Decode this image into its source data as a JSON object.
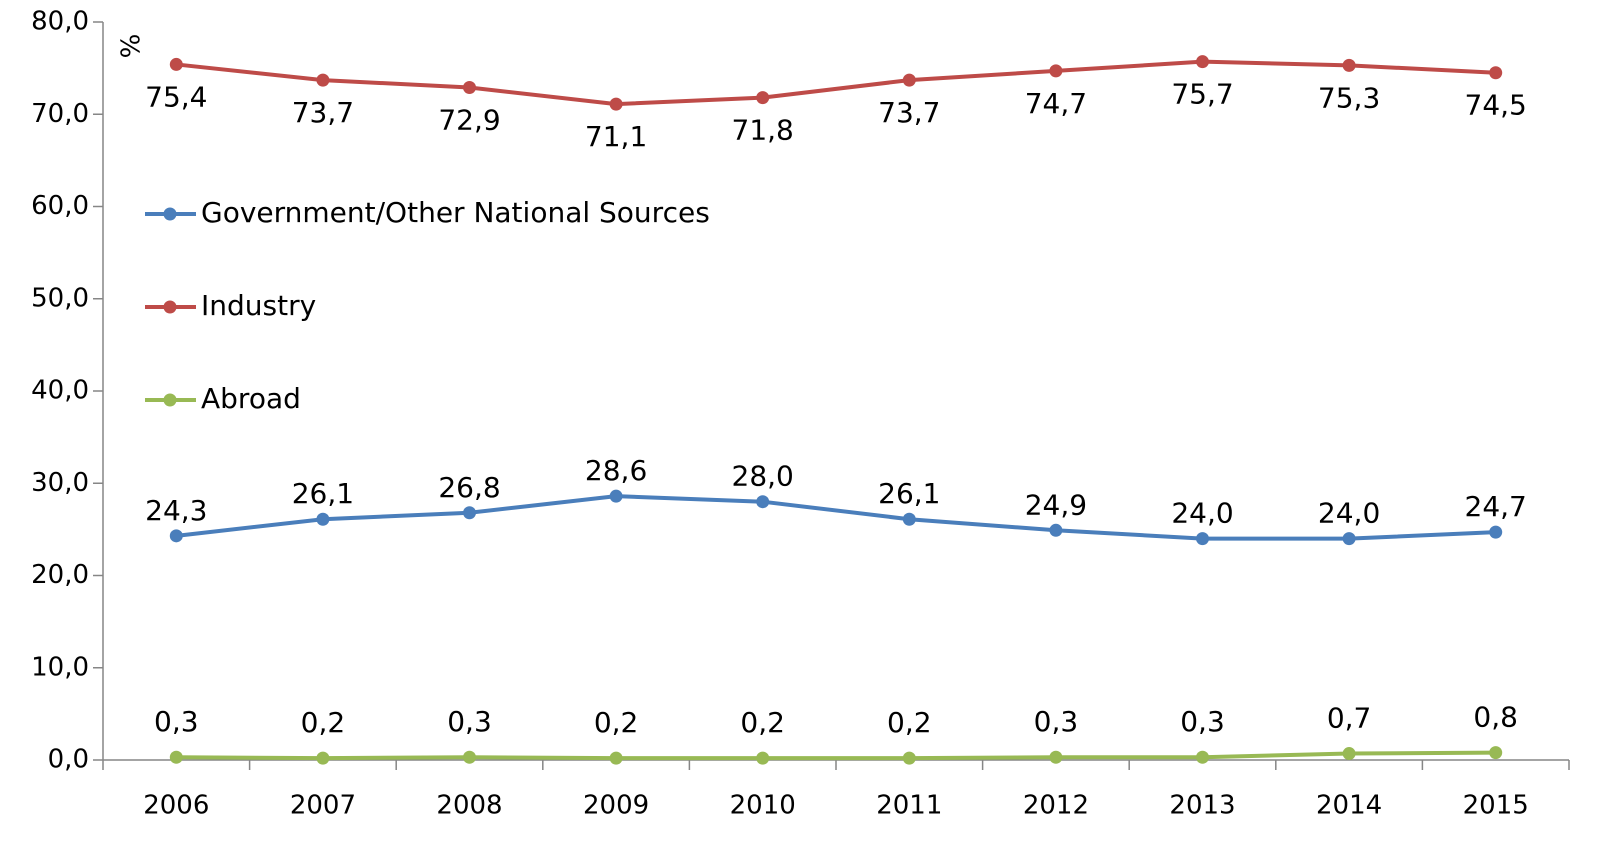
{
  "chart_data": {
    "type": "line",
    "y_label": "%",
    "categories": [
      "2006",
      "2007",
      "2008",
      "2009",
      "2010",
      "2011",
      "2012",
      "2013",
      "2014",
      "2015"
    ],
    "series": [
      {
        "name": "Government/Other National Sources",
        "color": "#4a7ebb",
        "values": [
          24.3,
          26.1,
          26.8,
          28.6,
          28.0,
          26.1,
          24.9,
          24.0,
          24.0,
          24.7
        ],
        "value_labels": [
          "24,3",
          "26,1",
          "26,8",
          "28,6",
          "28,0",
          "26,1",
          "24,9",
          "24,0",
          "24,0",
          "24,7"
        ]
      },
      {
        "name": "Industry",
        "color": "#be4b48",
        "values": [
          75.4,
          73.7,
          72.9,
          71.1,
          71.8,
          73.7,
          74.7,
          75.7,
          75.3,
          74.5
        ],
        "value_labels": [
          "75,4",
          "73,7",
          "72,9",
          "71,1",
          "71,8",
          "73,7",
          "74,7",
          "75,7",
          "75,3",
          "74,5"
        ]
      },
      {
        "name": "Abroad",
        "color": "#98b954",
        "values": [
          0.3,
          0.2,
          0.3,
          0.2,
          0.2,
          0.2,
          0.3,
          0.3,
          0.7,
          0.8
        ],
        "value_labels": [
          "0,3",
          "0,2",
          "0,3",
          "0,2",
          "0,2",
          "0,2",
          "0,3",
          "0,3",
          "0,7",
          "0,8"
        ]
      }
    ],
    "ylim": [
      0,
      80
    ],
    "yticks": [
      {
        "value": 0,
        "label": "0,0"
      },
      {
        "value": 10,
        "label": "10,0"
      },
      {
        "value": 20,
        "label": "20,0"
      },
      {
        "value": 30,
        "label": "30,0"
      },
      {
        "value": 40,
        "label": "40,0"
      },
      {
        "value": 50,
        "label": "50,0"
      },
      {
        "value": 60,
        "label": "60,0"
      },
      {
        "value": 70,
        "label": "70,0"
      },
      {
        "value": 80,
        "label": "80,0"
      }
    ],
    "legend": "left"
  }
}
